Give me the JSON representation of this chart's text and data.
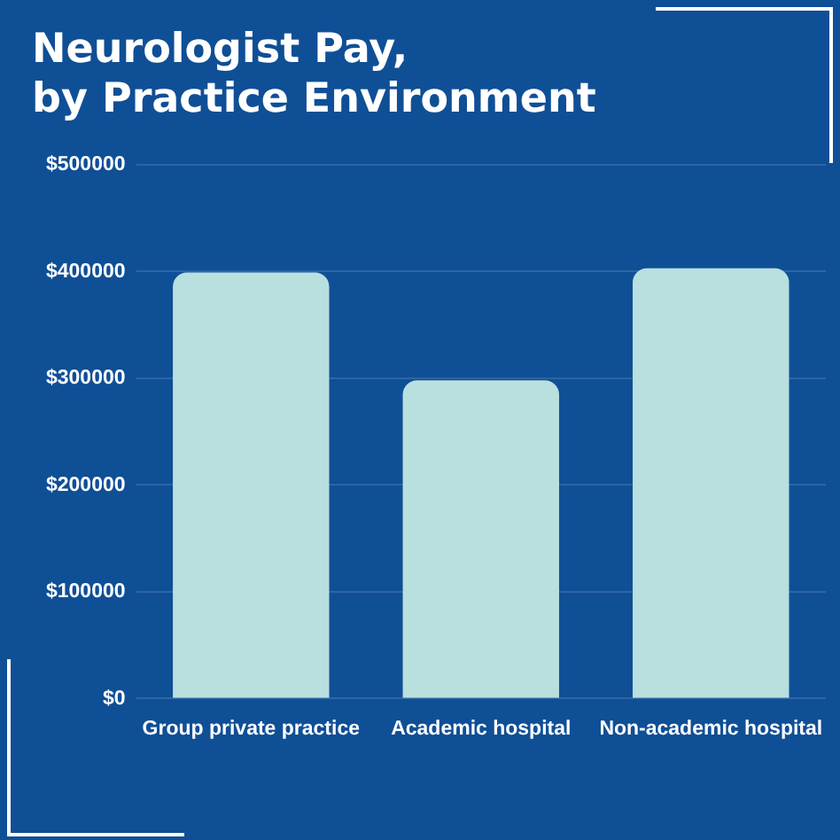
{
  "chart_data": {
    "type": "bar",
    "title": "Neurologist Pay,\nby Practice Environment",
    "categories": [
      "Group private practice",
      "Academic hospital",
      "Non-academic hospital"
    ],
    "values": [
      399000,
      298000,
      403000
    ],
    "color": "#b9dfdf",
    "ylim": [
      0,
      500000
    ],
    "yticks": [
      {
        "value": 0,
        "label": "$0"
      },
      {
        "value": 100000,
        "label": "$100000"
      },
      {
        "value": 200000,
        "label": "$200000"
      },
      {
        "value": 300000,
        "label": "$300000"
      },
      {
        "value": 400000,
        "label": "$400000"
      },
      {
        "value": 500000,
        "label": "$500000"
      }
    ],
    "grid": "y",
    "legend": false
  }
}
